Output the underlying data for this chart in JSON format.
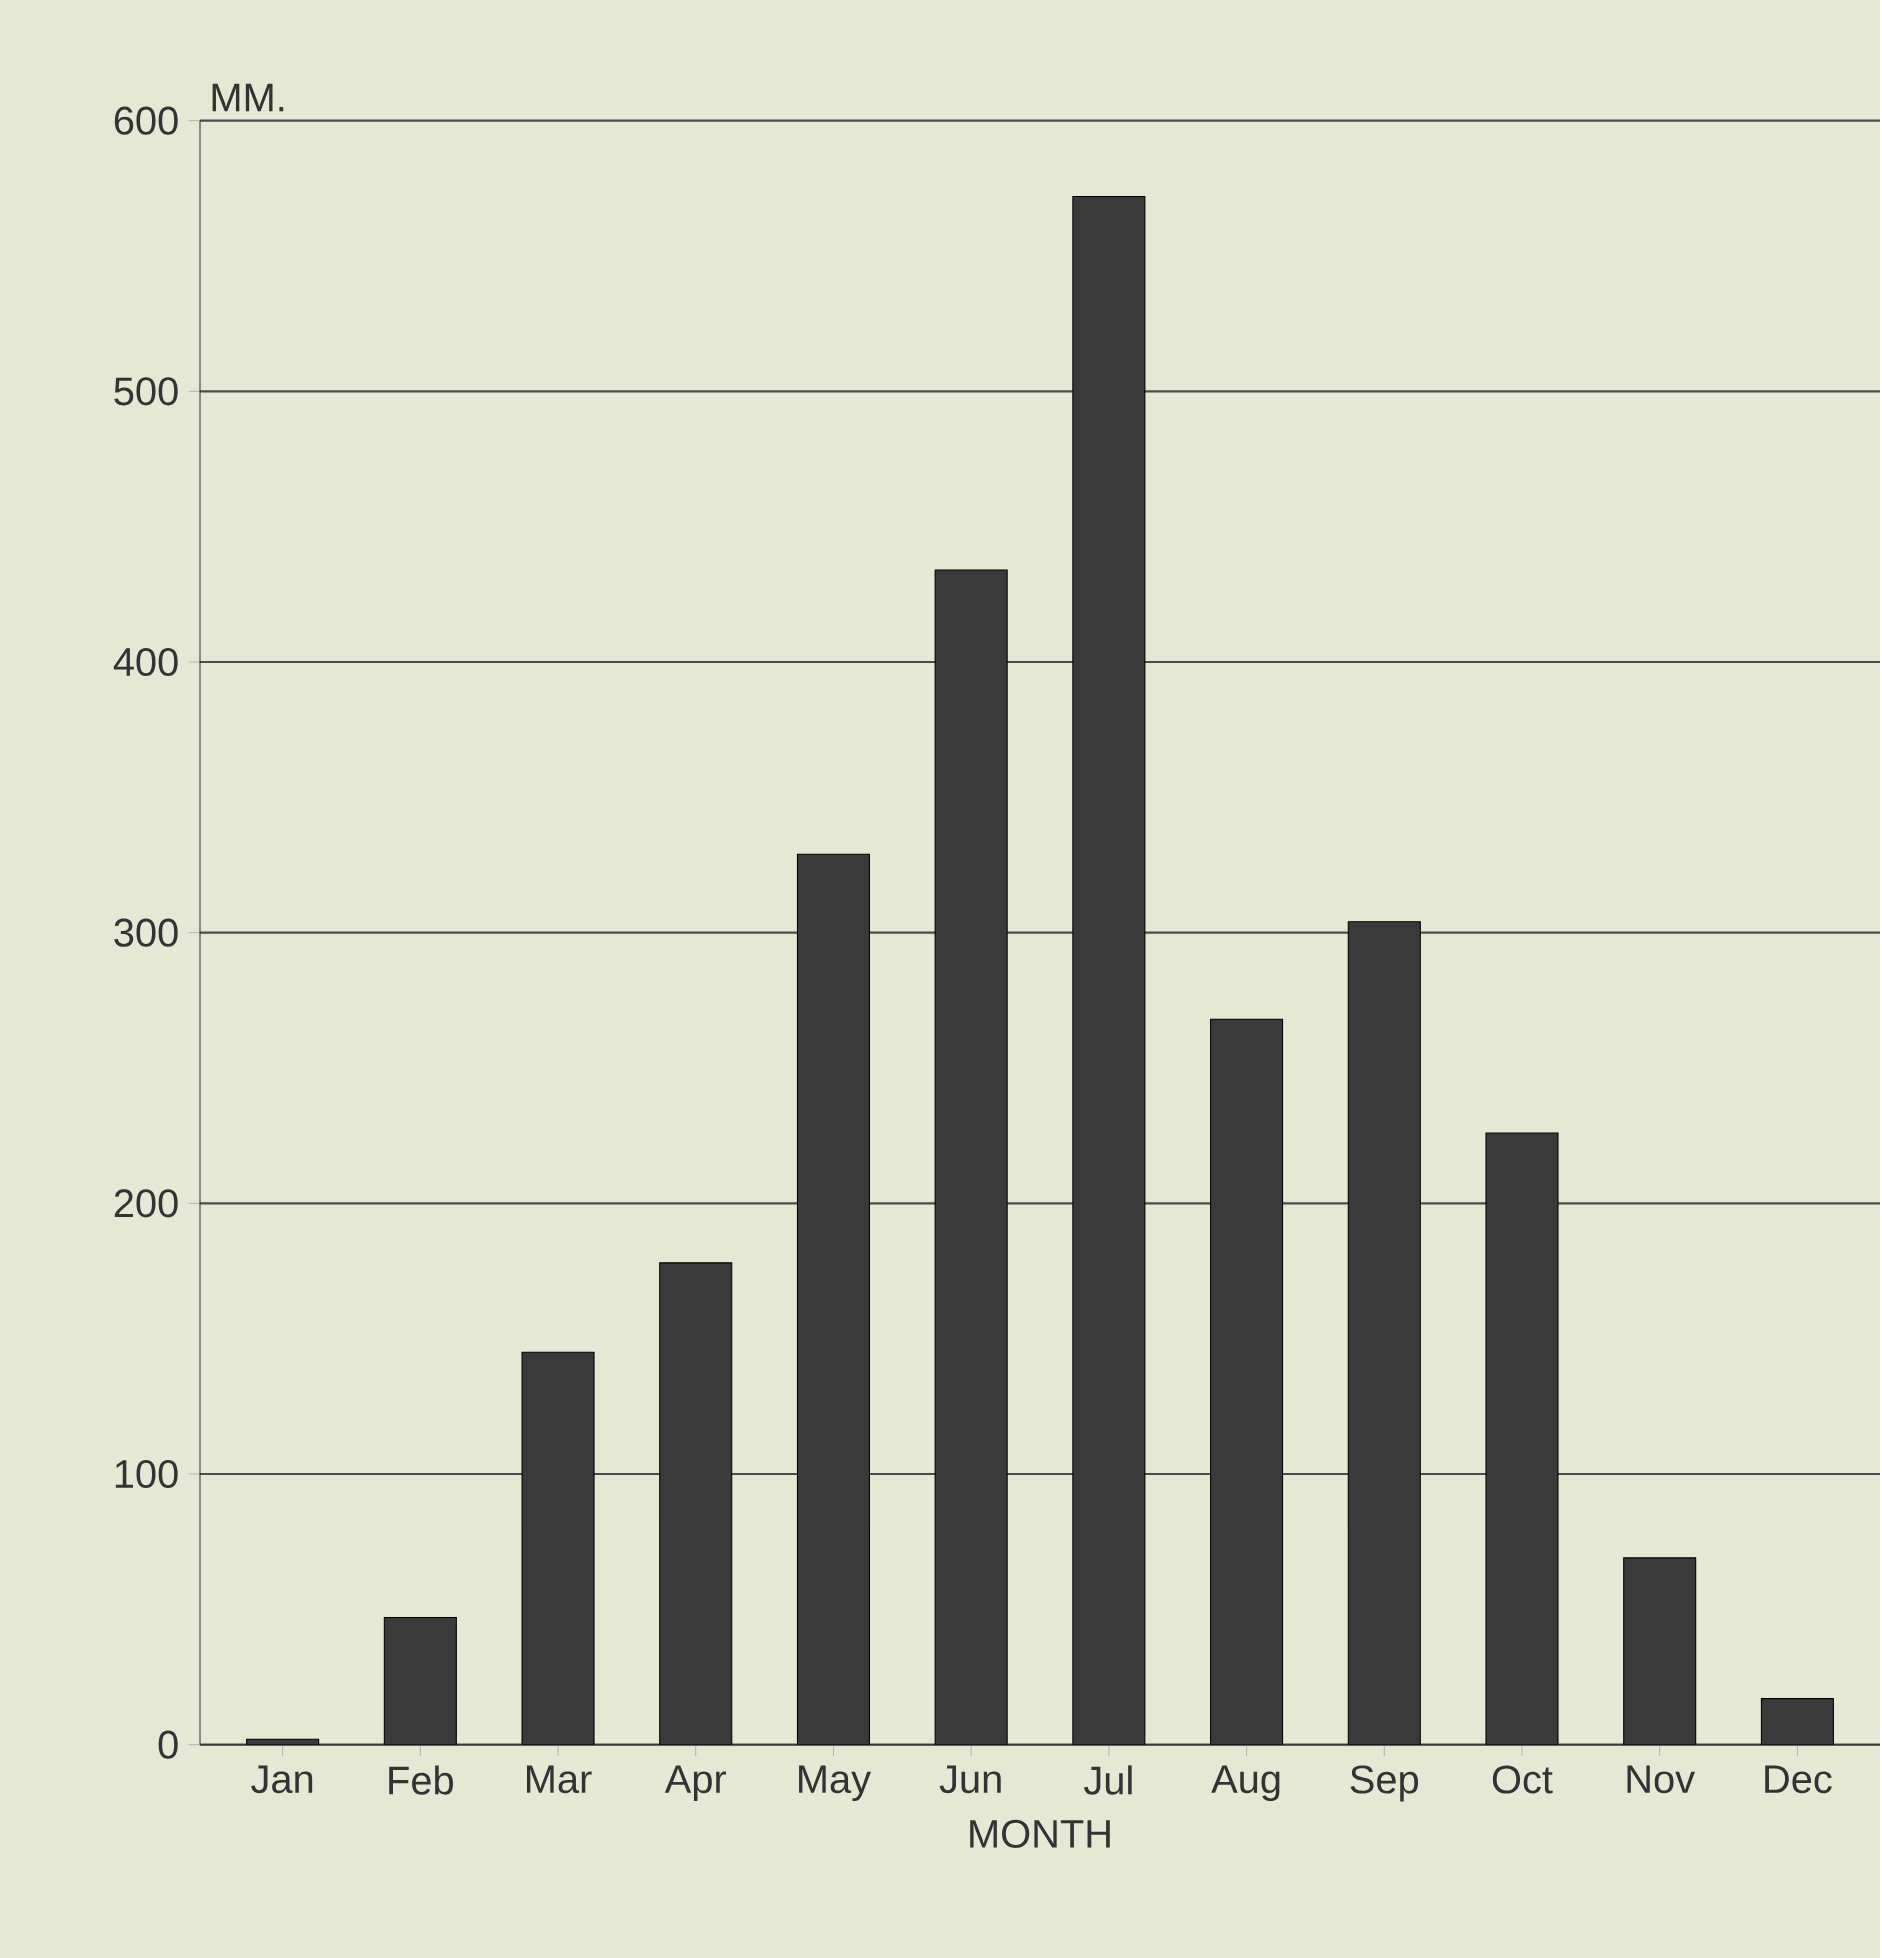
{
  "chart_data": {
    "type": "bar",
    "ylabel": "MM.",
    "xlabel": "MONTH",
    "categories": [
      "Jan",
      "Feb",
      "Mar",
      "Apr",
      "May",
      "Jun",
      "Jul",
      "Aug",
      "Sep",
      "Oct",
      "Nov",
      "Dec"
    ],
    "values": [
      2,
      47,
      145,
      178,
      329,
      434,
      572,
      268,
      304,
      226,
      69,
      17
    ],
    "color": "#3a3a3a",
    "ylim": [
      0,
      600
    ],
    "yticks": [
      0,
      100,
      200,
      300,
      400,
      500,
      600
    ],
    "grid": "y"
  }
}
